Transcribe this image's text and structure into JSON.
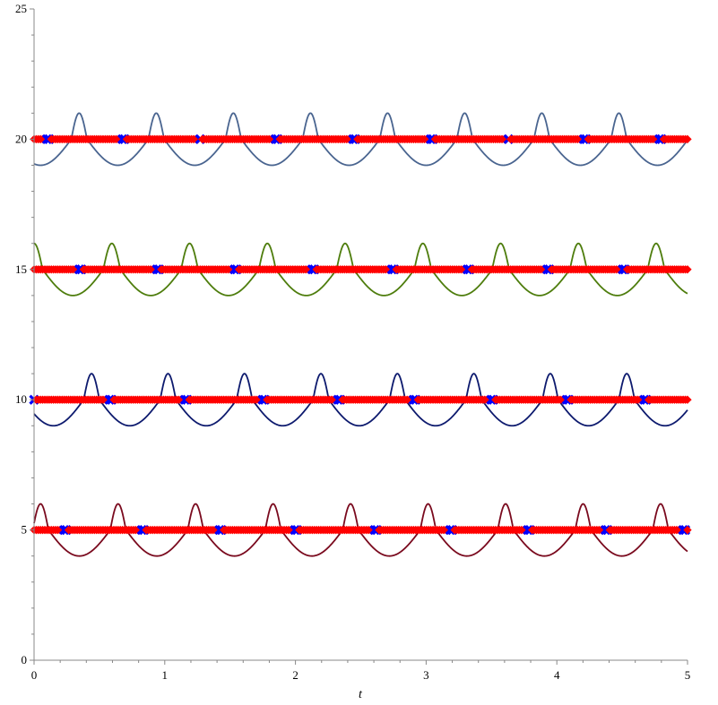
{
  "chart_data": {
    "type": "line",
    "xlabel": "t",
    "ylabel": "",
    "xlim": [
      0,
      5
    ],
    "ylim": [
      0,
      25
    ],
    "x_ticks": [
      "0",
      "1",
      "2",
      "3",
      "4",
      "5"
    ],
    "y_ticks": [
      "0",
      "5",
      "10",
      "15",
      "20",
      "25"
    ],
    "grid": false,
    "legend": "none",
    "series": [
      {
        "color": "#4A6590",
        "baseline": 20,
        "period": 0.59,
        "phase": 0.345,
        "peak_half_width": 0.06,
        "peak_height": 1.0,
        "trough_depth": 1.0,
        "wide_state_color": "#FF0000",
        "narrow_state_color": "#0000FF",
        "narrow_state_centers": [
          0.11,
          0.69,
          1.27,
          1.86,
          2.45,
          3.04,
          3.63,
          4.21,
          4.8
        ]
      },
      {
        "color": "#4E7D0D",
        "baseline": 15,
        "period": 0.595,
        "phase": 0.0,
        "peak_half_width": 0.065,
        "peak_height": 1.0,
        "trough_depth": 1.0,
        "wide_state_color": "#FF0000",
        "narrow_state_color": "#0000FF",
        "narrow_state_centers": [
          0.35,
          0.95,
          1.55,
          2.14,
          2.74,
          3.33,
          3.93,
          4.52
        ]
      },
      {
        "color": "#0D1A6E",
        "baseline": 10,
        "period": 0.585,
        "phase": 0.44,
        "peak_half_width": 0.06,
        "peak_height": 1.0,
        "trough_depth": 1.0,
        "wide_state_color": "#FF0000",
        "narrow_state_color": "#0000FF",
        "narrow_state_centers": [
          0.0,
          0.58,
          1.17,
          1.75,
          2.34,
          2.92,
          3.51,
          4.09,
          4.68
        ]
      },
      {
        "color": "#7A0A1E",
        "baseline": 5,
        "period": 0.593,
        "phase": 0.05,
        "peak_half_width": 0.06,
        "peak_height": 1.0,
        "trough_depth": 1.0,
        "wide_state_color": "#FF0000",
        "narrow_state_color": "#0000FF",
        "narrow_state_centers": [
          0.24,
          0.83,
          1.42,
          2.01,
          2.61,
          3.2,
          3.79,
          4.38,
          4.97
        ]
      }
    ]
  }
}
